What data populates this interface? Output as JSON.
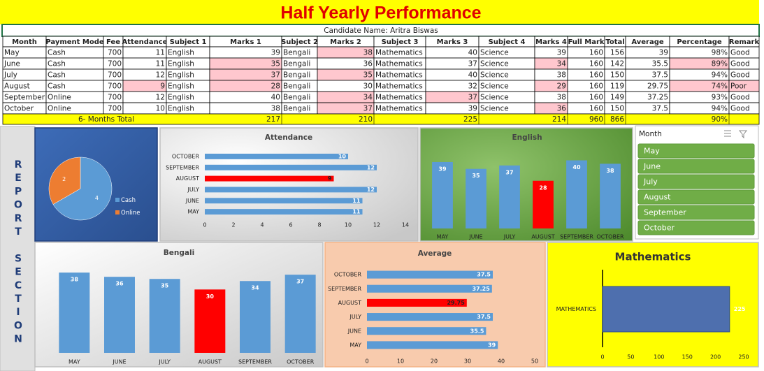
{
  "title": "Half Yearly Performance",
  "candidate": "Candidate Name: Aritra Biswas",
  "table": {
    "header": [
      "Month",
      "Payment Mode",
      "Fee",
      "Attendance",
      "Subject 1",
      "Marks 1",
      "Subject 2",
      "Marks 2",
      "Subject 3",
      "Marks 3",
      "Subject 4",
      "Marks 4",
      "Full Mark",
      "Total",
      "Average",
      "Percentage",
      "Remark"
    ],
    "rows": [
      [
        "May",
        "Cash",
        700,
        11,
        "English",
        39,
        "Bengali",
        38,
        "Mathematics",
        40,
        "Science",
        39,
        160,
        156,
        39,
        "98%",
        "Good"
      ],
      [
        "June",
        "Cash",
        700,
        11,
        "English",
        35,
        "Bengali",
        36,
        "Mathematics",
        37,
        "Science",
        34,
        160,
        142,
        35.5,
        "89%",
        "Good"
      ],
      [
        "July",
        "Cash",
        700,
        12,
        "English",
        37,
        "Bengali",
        35,
        "Mathematics",
        40,
        "Science",
        38,
        160,
        150,
        37.5,
        "94%",
        "Good"
      ],
      [
        "August",
        "Cash",
        700,
        9,
        "English",
        28,
        "Bengali",
        30,
        "Mathematics",
        32,
        "Science",
        29,
        160,
        119,
        29.75,
        "74%",
        "Poor"
      ],
      [
        "September",
        "Online",
        700,
        12,
        "English",
        40,
        "Bengali",
        34,
        "Mathematics",
        37,
        "Science",
        38,
        160,
        149,
        37.25,
        "93%",
        "Good"
      ],
      [
        "October",
        "Online",
        700,
        10,
        "English",
        38,
        "Bengali",
        37,
        "Mathematics",
        39,
        "Science",
        36,
        160,
        150,
        37.5,
        "94%",
        "Good"
      ]
    ],
    "total_row": {
      "label": "6- Months Total",
      "cells": [
        217,
        210,
        225,
        214,
        960,
        866,
        "90%"
      ]
    }
  },
  "report_section": "REPORT SECTION",
  "slicer": {
    "title": "Month",
    "items": [
      "May",
      "June",
      "July",
      "August",
      "September",
      "October"
    ]
  },
  "chart_data": [
    {
      "type": "pie",
      "categories": [
        "Cash",
        "Online"
      ],
      "values": [
        4,
        2
      ],
      "colors": [
        "#5b9bd5",
        "#ed7d31"
      ]
    },
    {
      "type": "bar",
      "orientation": "horizontal",
      "title": "Attendance",
      "categories": [
        "MAY",
        "JUNE",
        "JULY",
        "AUGUST",
        "SEPTEMBER",
        "OCTOBER"
      ],
      "values": [
        11,
        11,
        12,
        9,
        12,
        10
      ],
      "colors": [
        "#5b9bd5",
        "#5b9bd5",
        "#5b9bd5",
        "#ff0000",
        "#5b9bd5",
        "#5b9bd5"
      ],
      "xlim": [
        0,
        14
      ],
      "xticks": [
        0,
        2,
        4,
        6,
        8,
        10,
        12,
        14
      ]
    },
    {
      "type": "bar",
      "orientation": "vertical",
      "title": "English",
      "categories": [
        "MAY",
        "JUNE",
        "JULY",
        "AUGUST",
        "SEPTEMBER",
        "OCTOBER"
      ],
      "values": [
        39,
        35,
        37,
        28,
        40,
        38
      ],
      "colors": [
        "#5b9bd5",
        "#5b9bd5",
        "#5b9bd5",
        "#ff0000",
        "#5b9bd5",
        "#5b9bd5"
      ],
      "ylim": [
        0,
        48
      ]
    },
    {
      "type": "bar",
      "orientation": "vertical",
      "title": "Bengali",
      "categories": [
        "MAY",
        "JUNE",
        "JULY",
        "AUGUST",
        "SEPTEMBER",
        "OCTOBER"
      ],
      "values": [
        38,
        36,
        35,
        30,
        34,
        37
      ],
      "colors": [
        "#5b9bd5",
        "#5b9bd5",
        "#5b9bd5",
        "#ff0000",
        "#5b9bd5",
        "#5b9bd5"
      ],
      "ylim": [
        0,
        45
      ]
    },
    {
      "type": "bar",
      "orientation": "horizontal",
      "title": "Average",
      "categories": [
        "MAY",
        "JUNE",
        "JULY",
        "AUGUST",
        "SEPTEMBER",
        "OCTOBER"
      ],
      "values": [
        39,
        35.5,
        37.5,
        29.75,
        37.25,
        37.5
      ],
      "colors": [
        "#5b9bd5",
        "#5b9bd5",
        "#5b9bd5",
        "#ff0000",
        "#5b9bd5",
        "#5b9bd5"
      ],
      "xlim": [
        0,
        50
      ],
      "xticks": [
        0,
        10,
        20,
        30,
        40,
        50
      ]
    },
    {
      "type": "bar",
      "orientation": "horizontal",
      "title": "Mathematics",
      "categories": [
        "MATHEMATICS"
      ],
      "values": [
        225
      ],
      "colors": [
        "#4e6fae"
      ],
      "xlim": [
        0,
        250
      ],
      "xticks": [
        0,
        50,
        100,
        150,
        200,
        250
      ]
    }
  ]
}
